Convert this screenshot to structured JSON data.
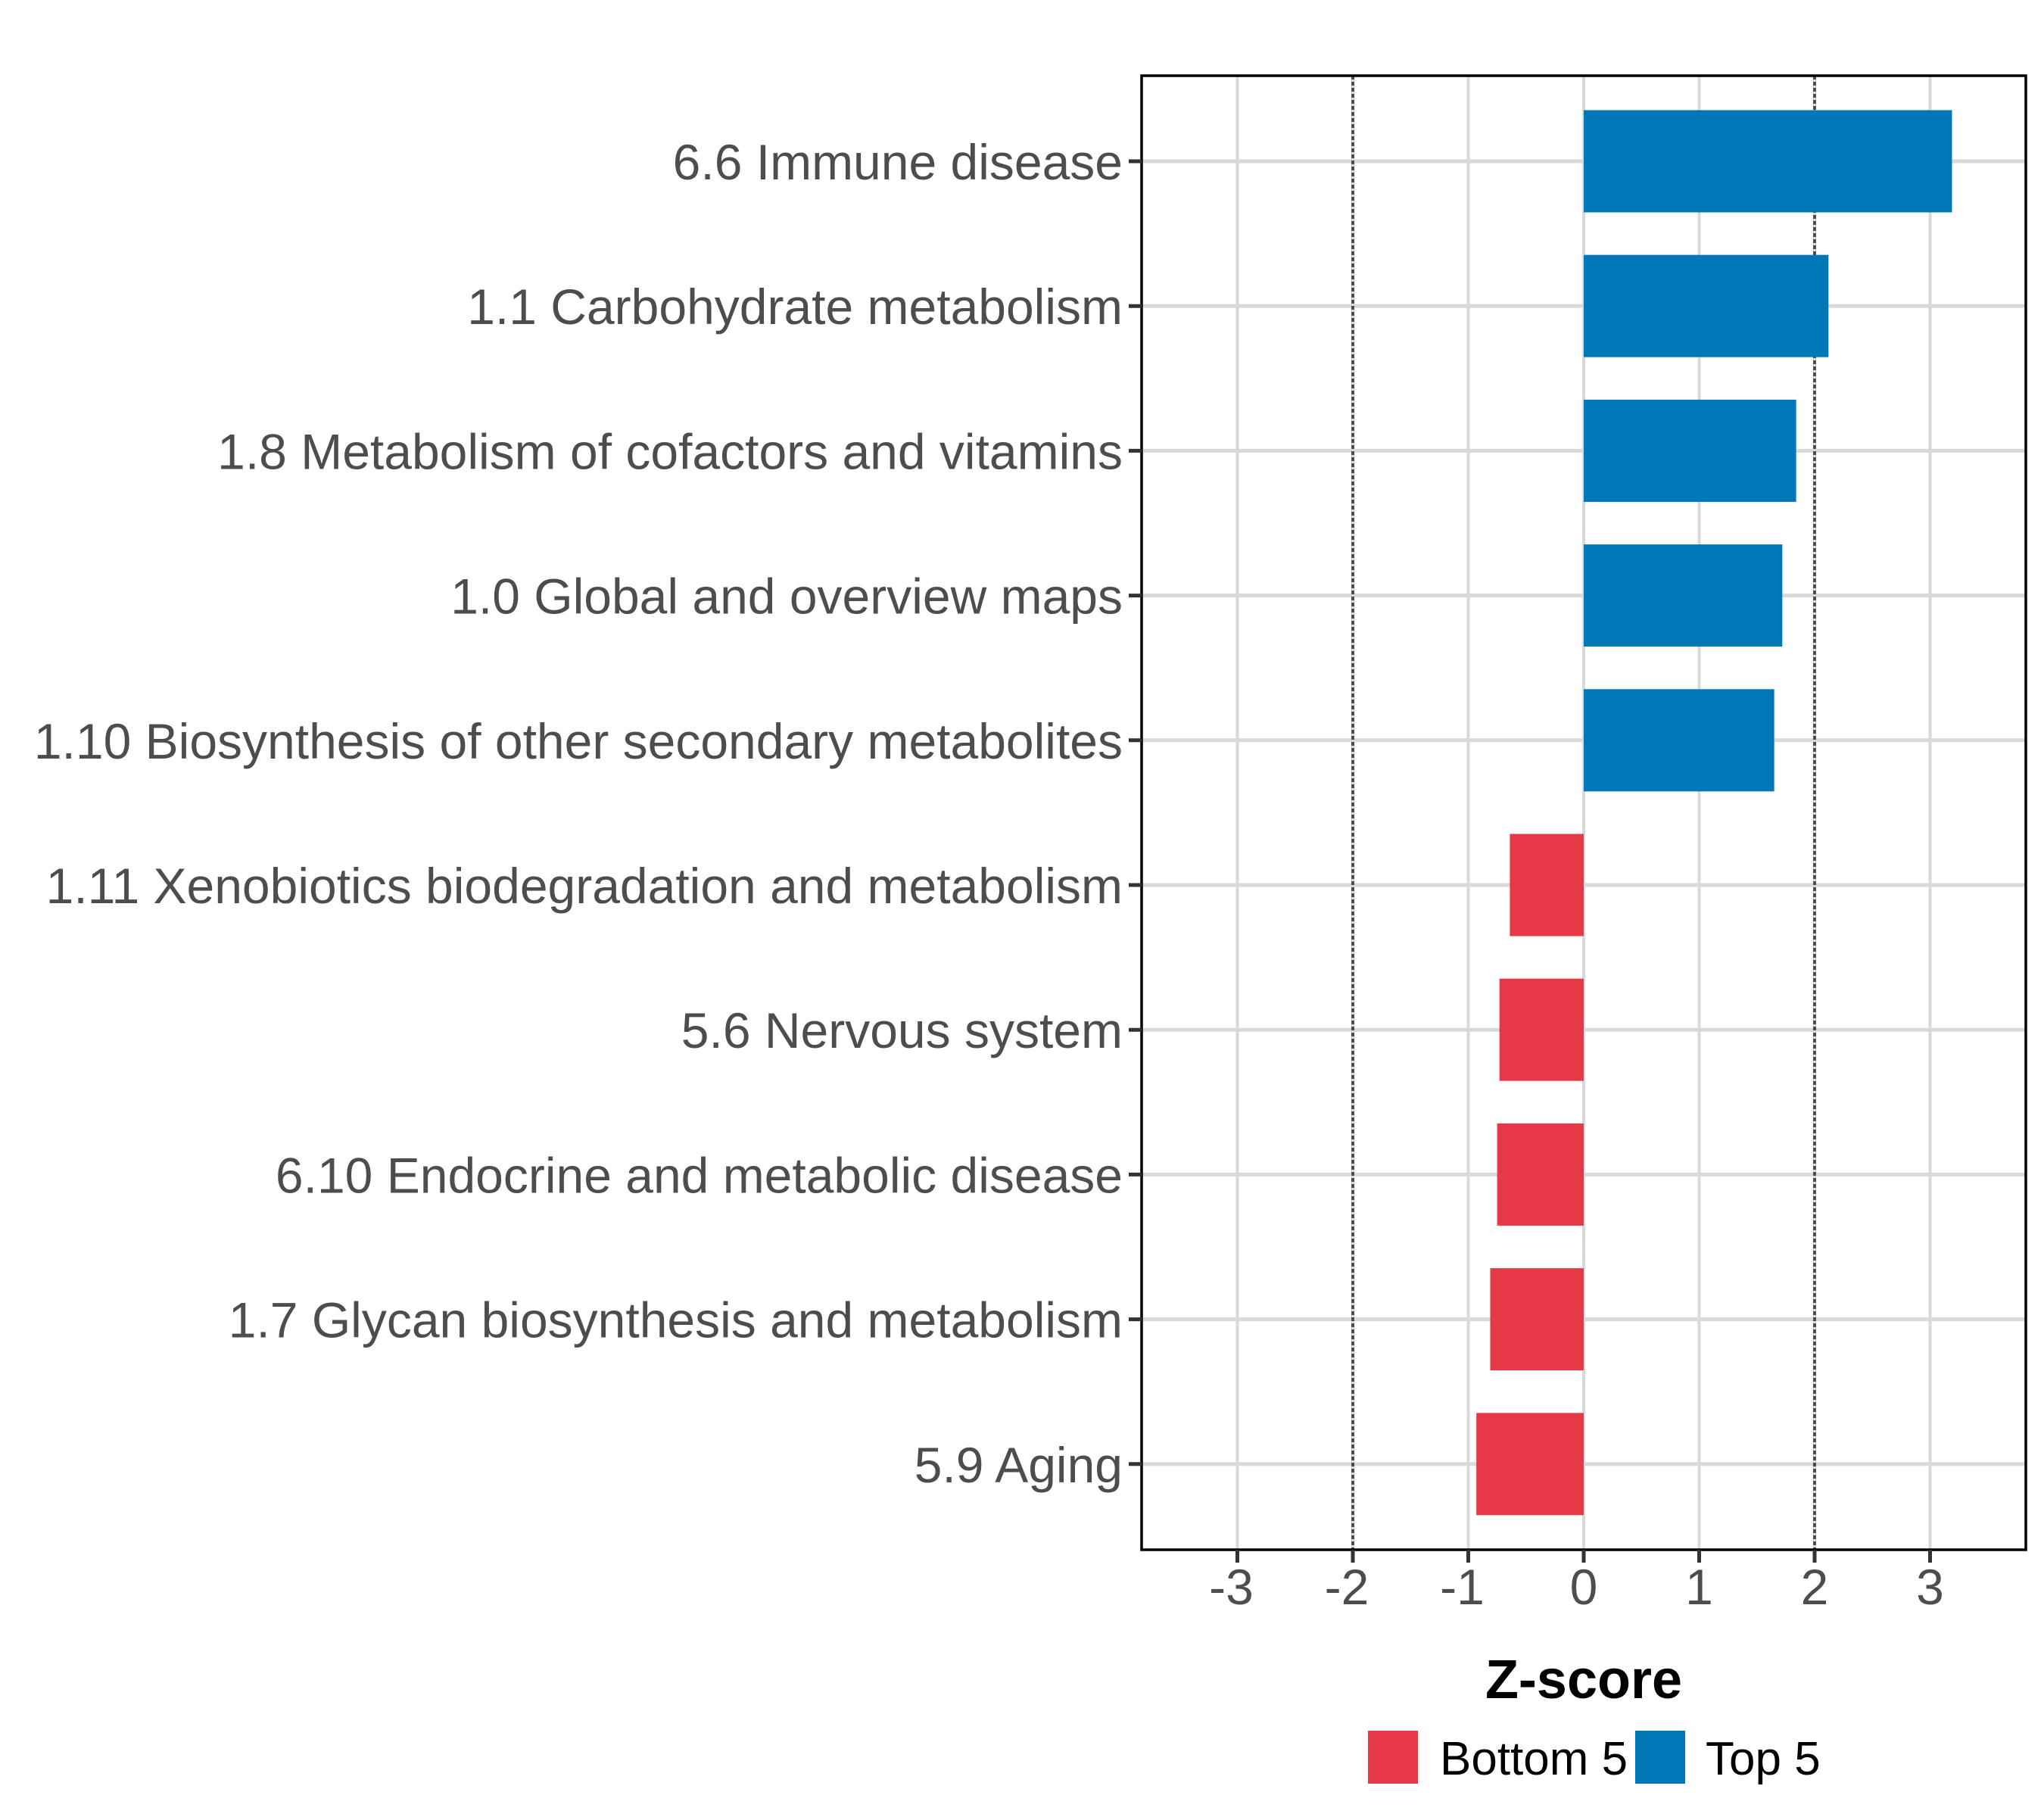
{
  "chart_data": {
    "type": "bar",
    "orientation": "horizontal",
    "title": "",
    "xlabel": "Z-score",
    "ylabel": "",
    "xlim": [
      -3.8,
      3.8
    ],
    "xticks": [
      -3,
      -2,
      -1,
      0,
      1,
      2,
      3
    ],
    "xtick_labels": [
      "-3",
      "-2",
      "-1",
      "0",
      "1",
      "2",
      "3"
    ],
    "grid": true,
    "reference_lines": [
      {
        "x": -2,
        "style": "dotted"
      },
      {
        "x": 2,
        "style": "dotted"
      }
    ],
    "categories": [
      "6.6 Immune disease",
      "1.1 Carbohydrate metabolism",
      "1.8 Metabolism of cofactors and vitamins",
      "1.0 Global and overview maps",
      "1.10 Biosynthesis of other secondary metabolites",
      "1.11 Xenobiotics biodegradation and metabolism",
      "5.6 Nervous system",
      "6.10 Endocrine and metabolic disease",
      "1.7 Glycan biosynthesis and metabolism",
      "5.9 Aging"
    ],
    "values": [
      3.19,
      2.12,
      1.84,
      1.72,
      1.65,
      -0.64,
      -0.73,
      -0.75,
      -0.81,
      -0.93
    ],
    "groups": [
      "Top 5",
      "Top 5",
      "Top 5",
      "Top 5",
      "Top 5",
      "Bottom 5",
      "Bottom 5",
      "Bottom 5",
      "Bottom 5",
      "Bottom 5"
    ],
    "legend": {
      "placement": "bottom",
      "entries": [
        {
          "label": "Bottom 5",
          "color": "#e63946"
        },
        {
          "label": "Top 5",
          "color": "#0077b6"
        }
      ]
    },
    "colors": {
      "Top 5": "#0077b6",
      "Bottom 5": "#e63946",
      "grid": "#d9d9d9",
      "reference_line": "#4d4d4d",
      "axis_text": "#4d4d4d",
      "panel_border": "#000000"
    }
  }
}
